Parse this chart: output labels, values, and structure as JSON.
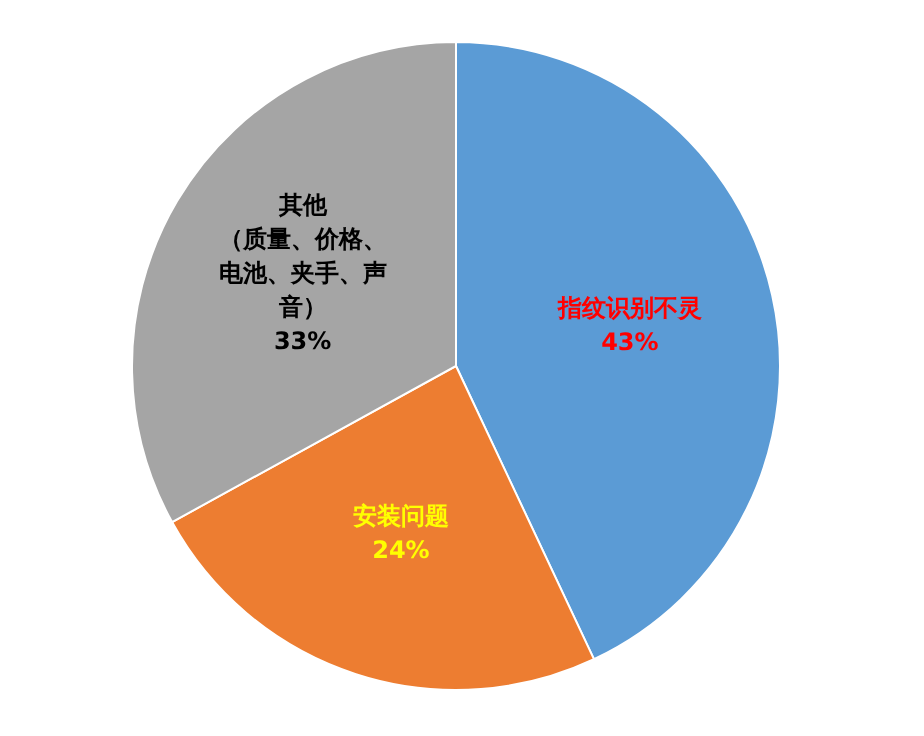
{
  "chart_data": {
    "type": "pie",
    "categories": [
      "指纹识别不灵",
      "安装问题",
      "其他（质量、价格、电池、夹手、声音）"
    ],
    "values": [
      43,
      24,
      33
    ],
    "colors": [
      "#5b9bd5",
      "#ed7d31",
      "#a5a5a5"
    ],
    "value_labels": [
      "43%",
      "24%",
      "33%"
    ]
  }
}
